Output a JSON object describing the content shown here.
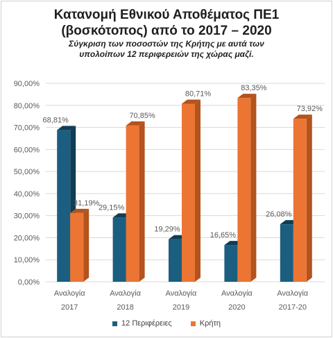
{
  "colors": {
    "series1": "#1b5e80",
    "series1_dark": "#0f3d55",
    "series2": "#ec7533",
    "series2_dark": "#b3531e",
    "grid": "#d9d9d9",
    "text": "#595959"
  },
  "chart_data": {
    "type": "bar",
    "title_line1": "Κατανομή Εθνικού Αποθέματος ΠΕ1",
    "title_line2": "(βοσκότοπος) από το 2017 – 2020",
    "subtitle_line1": "Σύγκριση των ποσοστών της Κρήτης με αυτά των",
    "subtitle_line2": "υπολοίπων 12 περιφερειών  της χώρας μαζί.",
    "categories": [
      {
        "line1": "Αναλογία",
        "line2": "2017"
      },
      {
        "line1": "Αναλογία",
        "line2": "2018"
      },
      {
        "line1": "Αναλογία",
        "line2": "2019"
      },
      {
        "line1": "Αναλογία",
        "line2": "2020"
      },
      {
        "line1": "Αναλογία",
        "line2": "2017-20"
      }
    ],
    "series": [
      {
        "name": "12 Περιφέρειες",
        "values": [
          68.81,
          29.15,
          19.29,
          16.65,
          26.08
        ],
        "labels": [
          "68,81%",
          "29,15%",
          "19,29%",
          "16,65%",
          "26,08%"
        ]
      },
      {
        "name": "Κρήτη",
        "values": [
          31.19,
          70.85,
          80.71,
          83.35,
          73.92
        ],
        "labels": [
          "31,19%",
          "70,85%",
          "80,71%",
          "83,35%",
          "73,92%"
        ]
      }
    ],
    "ylim": [
      0,
      90
    ],
    "yticks": [
      0,
      10,
      20,
      30,
      40,
      50,
      60,
      70,
      80,
      90
    ],
    "ytick_labels": [
      "0,00%",
      "10,00%",
      "20,00%",
      "30,00%",
      "40,00%",
      "50,00%",
      "60,00%",
      "70,00%",
      "80,00%",
      "90,00%"
    ],
    "grid": true,
    "legend_position": "bottom"
  }
}
